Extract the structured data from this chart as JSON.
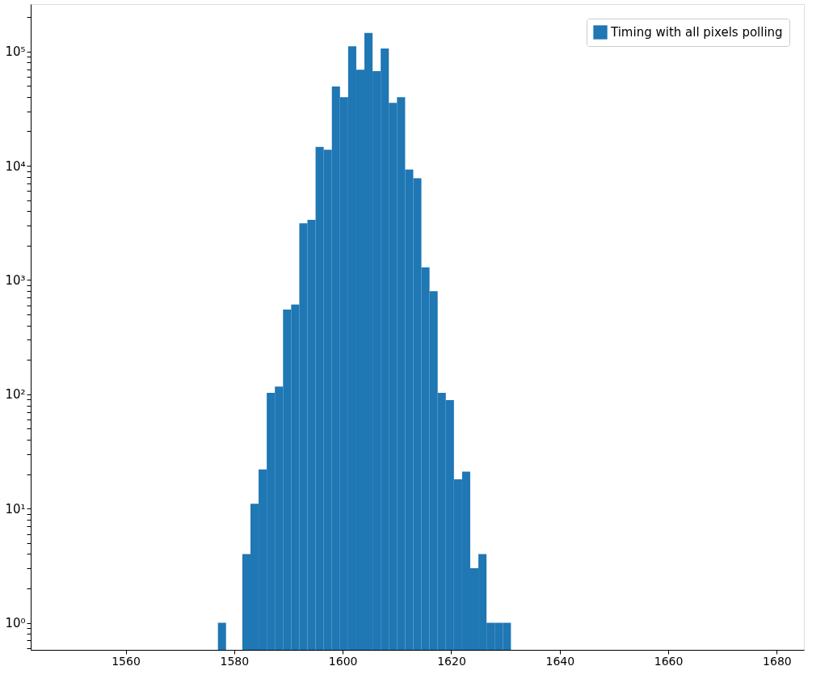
{
  "chart_data": {
    "type": "histogram",
    "bins": [
      1577,
      1578.5,
      1580,
      1581.5,
      1583,
      1584.5,
      1586,
      1587.5,
      1589,
      1590.5,
      1592,
      1593.5,
      1595,
      1596.5,
      1598,
      1599.5,
      1601,
      1602.5,
      1604,
      1605.5,
      1607,
      1608.5,
      1610,
      1611.5,
      1613,
      1614.5,
      1616,
      1617.5,
      1619,
      1620.5,
      1622,
      1623.5,
      1625,
      1626.5,
      1628,
      1629.5,
      1631
    ],
    "series": [
      {
        "name": "Timing with all pixels polling",
        "color": "#1f77b4",
        "values": [
          1,
          null,
          null,
          4,
          11,
          22,
          103,
          117,
          552,
          609,
          3130,
          3360,
          14600,
          13800,
          49400,
          39800,
          111000,
          69100,
          145000,
          67400,
          106000,
          35500,
          39800,
          9270,
          7780,
          1290,
          799,
          103,
          89,
          18,
          21,
          3,
          4,
          1,
          1,
          1
        ]
      }
    ],
    "log": "y",
    "xlim": [
      1542.5,
      1685
    ],
    "xticks": [
      1560,
      1580,
      1600,
      1620,
      1640,
      1660,
      1680
    ],
    "ylim": [
      0.58,
      260000
    ],
    "yticks": [
      {
        "value": 0.6,
        "label": null
      },
      {
        "value": 0.7,
        "label": null
      },
      {
        "value": 0.8,
        "label": null
      },
      {
        "value": 0.9,
        "label": null
      },
      {
        "value": 1,
        "label": "10⁰"
      },
      {
        "value": 2,
        "label": null
      },
      {
        "value": 3,
        "label": null
      },
      {
        "value": 4,
        "label": null
      },
      {
        "value": 5,
        "label": null
      },
      {
        "value": 6,
        "label": null
      },
      {
        "value": 7,
        "label": null
      },
      {
        "value": 8,
        "label": null
      },
      {
        "value": 9,
        "label": null
      },
      {
        "value": 10,
        "label": "10¹"
      },
      {
        "value": 20,
        "label": null
      },
      {
        "value": 30,
        "label": null
      },
      {
        "value": 40,
        "label": null
      },
      {
        "value": 50,
        "label": null
      },
      {
        "value": 60,
        "label": null
      },
      {
        "value": 70,
        "label": null
      },
      {
        "value": 80,
        "label": null
      },
      {
        "value": 90,
        "label": null
      },
      {
        "value": 100,
        "label": "10²"
      },
      {
        "value": 200,
        "label": null
      },
      {
        "value": 300,
        "label": null
      },
      {
        "value": 400,
        "label": null
      },
      {
        "value": 500,
        "label": null
      },
      {
        "value": 600,
        "label": null
      },
      {
        "value": 700,
        "label": null
      },
      {
        "value": 800,
        "label": null
      },
      {
        "value": 900,
        "label": null
      },
      {
        "value": 1000,
        "label": "10³"
      },
      {
        "value": 2000,
        "label": null
      },
      {
        "value": 3000,
        "label": null
      },
      {
        "value": 4000,
        "label": null
      },
      {
        "value": 5000,
        "label": null
      },
      {
        "value": 6000,
        "label": null
      },
      {
        "value": 7000,
        "label": null
      },
      {
        "value": 8000,
        "label": null
      },
      {
        "value": 9000,
        "label": null
      },
      {
        "value": 10000,
        "label": "10⁴"
      },
      {
        "value": 20000,
        "label": null
      },
      {
        "value": 30000,
        "label": null
      },
      {
        "value": 40000,
        "label": null
      },
      {
        "value": 50000,
        "label": null
      },
      {
        "value": 60000,
        "label": null
      },
      {
        "value": 70000,
        "label": null
      },
      {
        "value": 80000,
        "label": null
      },
      {
        "value": 90000,
        "label": null
      },
      {
        "value": 100000,
        "label": "10⁵"
      },
      {
        "value": 200000,
        "label": null
      }
    ],
    "grid": false,
    "legend": "top right"
  }
}
